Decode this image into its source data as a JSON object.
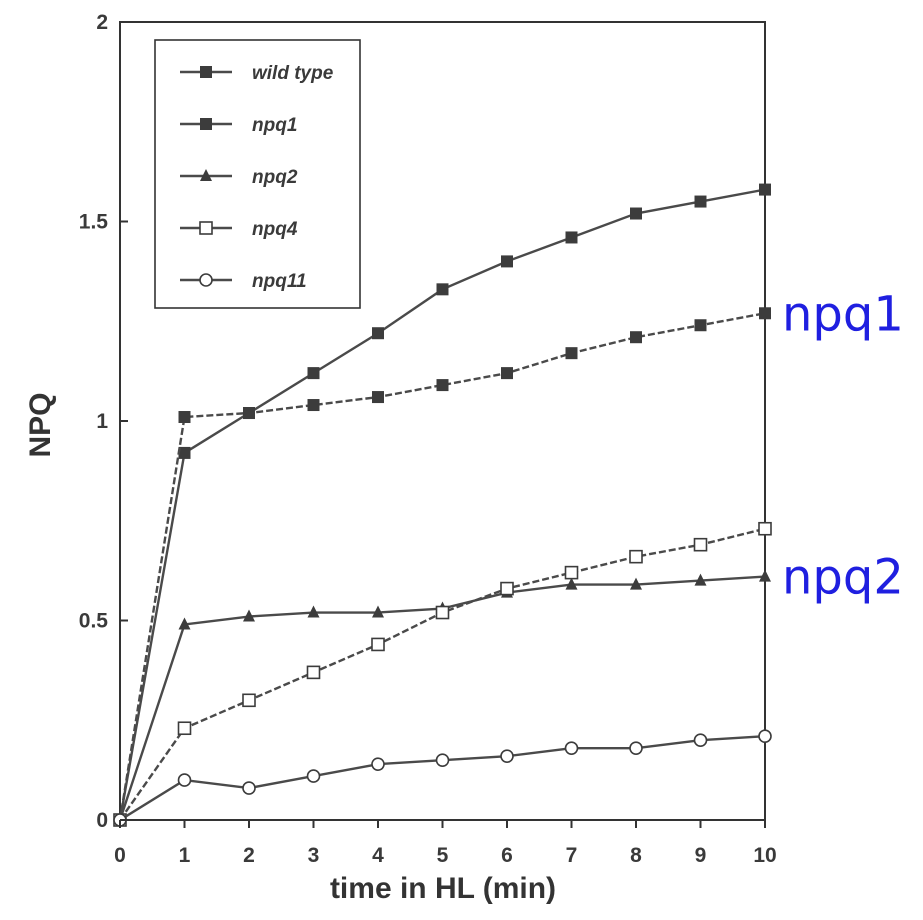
{
  "chart_data": {
    "type": "line",
    "title": "",
    "xlabel": "time in HL (min)",
    "ylabel": "NPQ",
    "x": [
      0,
      1,
      2,
      3,
      4,
      5,
      6,
      7,
      8,
      9,
      10
    ],
    "xlim": [
      0,
      10
    ],
    "ylim": [
      0,
      2
    ],
    "x_ticks": [
      "0",
      "1",
      "2",
      "3",
      "4",
      "5",
      "6",
      "7",
      "8",
      "9",
      "10"
    ],
    "y_ticks": [
      {
        "value": 0,
        "label": "0"
      },
      {
        "value": 0.5,
        "label": "0.5"
      },
      {
        "value": 1,
        "label": "1"
      },
      {
        "value": 1.5,
        "label": "1.5"
      },
      {
        "value": 2,
        "label": "2"
      }
    ],
    "grid": false,
    "legend": {
      "placement": "top-left",
      "entries": [
        "wild type",
        "npq1",
        "npq2",
        "npq4",
        "npq11"
      ]
    },
    "series": [
      {
        "name": "wild type",
        "marker": "square-filled",
        "values": [
          0,
          0.92,
          1.02,
          1.12,
          1.22,
          1.33,
          1.4,
          1.46,
          1.52,
          1.55,
          1.58
        ]
      },
      {
        "name": "npq1",
        "marker": "square-filled",
        "values": [
          0,
          1.01,
          1.02,
          1.04,
          1.06,
          1.09,
          1.12,
          1.17,
          1.21,
          1.24,
          1.27
        ]
      },
      {
        "name": "npq2",
        "marker": "triangle-filled",
        "values": [
          0,
          0.49,
          0.51,
          0.52,
          0.52,
          0.53,
          0.57,
          0.59,
          0.59,
          0.6,
          0.61
        ]
      },
      {
        "name": "npq4",
        "marker": "square-open",
        "values": [
          0,
          0.23,
          0.3,
          0.37,
          0.44,
          0.52,
          0.58,
          0.62,
          0.66,
          0.69,
          0.73
        ]
      },
      {
        "name": "npq11",
        "marker": "circle-open",
        "values": [
          0,
          0.1,
          0.08,
          0.11,
          0.14,
          0.15,
          0.16,
          0.18,
          0.18,
          0.2,
          0.21
        ]
      }
    ],
    "annotations": [
      {
        "text": "npq1",
        "x": 10,
        "y": 1.27,
        "color": "#1f1fe0"
      },
      {
        "text": "npq2",
        "x": 10,
        "y": 0.61,
        "color": "#1f1fe0"
      }
    ],
    "colors": {
      "line": "#4a4a4a",
      "marker": "#3c3c3c",
      "axis": "#333333"
    }
  }
}
